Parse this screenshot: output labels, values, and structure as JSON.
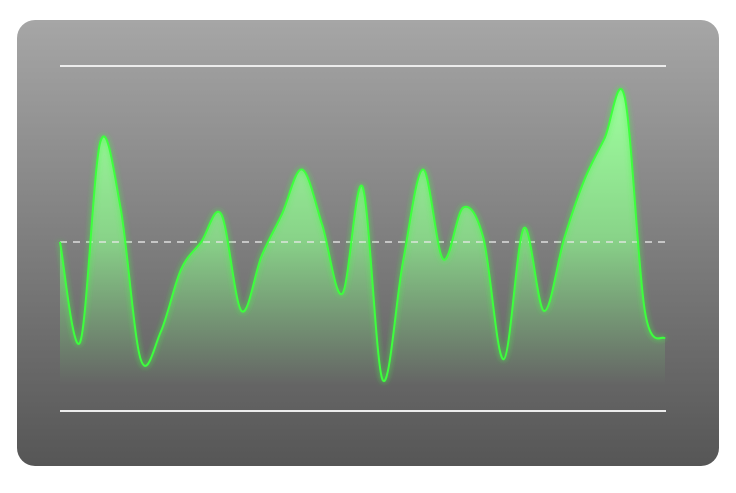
{
  "chart_data": {
    "type": "area",
    "values": [
      49,
      20,
      78,
      59,
      15,
      23,
      41,
      49,
      57,
      29,
      45,
      57,
      70,
      54,
      34,
      65,
      9,
      43,
      70,
      44,
      59,
      50,
      15,
      53,
      29,
      50,
      67,
      79,
      91,
      29,
      21
    ],
    "color": "#3cff3c",
    "ylim": [
      0,
      100
    ],
    "yticks": [
      0,
      100
    ],
    "grid": true,
    "reference_line": 49
  }
}
